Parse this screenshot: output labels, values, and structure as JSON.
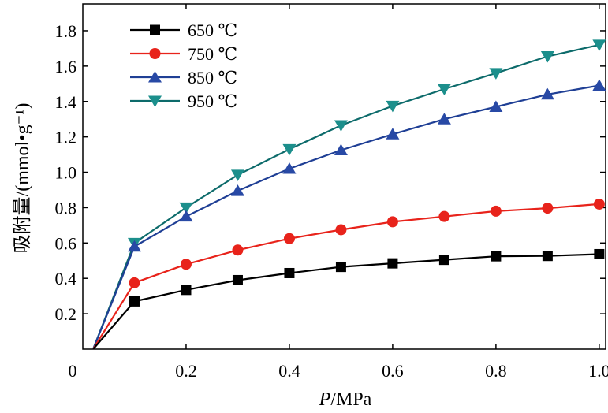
{
  "chart_data": {
    "type": "line",
    "xlabel": "P/MPa",
    "xlabel_italic_part": "P",
    "xlabel_rest": "/MPa",
    "ylabel": "吸附量/(mmol•g⁻¹)",
    "xlim": [
      0,
      1.0
    ],
    "ylim": [
      0,
      1.9
    ],
    "x_ticks": [
      "0",
      "0.2",
      "0.4",
      "0.6",
      "0.8",
      "1.0"
    ],
    "y_ticks": [
      "0.2",
      "0.4",
      "0.6",
      "0.8",
      "1.0",
      "1.2",
      "1.4",
      "1.6",
      "1.8"
    ],
    "grid": false,
    "legend_position": "top-left",
    "x": [
      0.02,
      0.1,
      0.2,
      0.3,
      0.4,
      0.5,
      0.6,
      0.7,
      0.8,
      0.9,
      1.0
    ],
    "series": [
      {
        "name": "650 ℃",
        "marker": "square",
        "color": "#000000",
        "marker_color": "#000000",
        "values": [
          0.0,
          0.27,
          0.335,
          0.39,
          0.43,
          0.465,
          0.485,
          0.505,
          0.525,
          0.527,
          0.537
        ]
      },
      {
        "name": "750 ℃",
        "marker": "circle",
        "color": "#e8231b",
        "marker_color": "#e8231b",
        "values": [
          0.0,
          0.375,
          0.48,
          0.56,
          0.625,
          0.675,
          0.72,
          0.75,
          0.78,
          0.797,
          0.82
        ]
      },
      {
        "name": "850 ℃",
        "marker": "triangle-up",
        "color": "#1f3f95",
        "marker_color": "#2849a5",
        "values": [
          0.0,
          0.58,
          0.75,
          0.895,
          1.02,
          1.125,
          1.215,
          1.3,
          1.37,
          1.44,
          1.49
        ]
      },
      {
        "name": "950 ℃",
        "marker": "triangle-down",
        "color": "#0d6b6b",
        "marker_color": "#1c8f8c",
        "values": [
          0.0,
          0.6,
          0.8,
          0.985,
          1.13,
          1.265,
          1.375,
          1.47,
          1.56,
          1.655,
          1.72
        ]
      }
    ]
  }
}
